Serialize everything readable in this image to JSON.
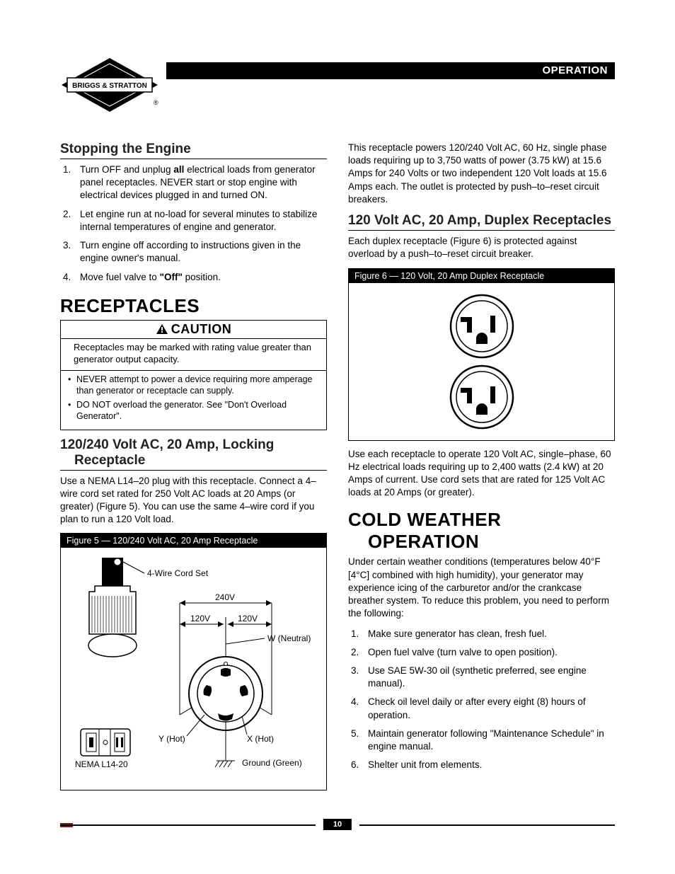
{
  "header": {
    "brand": "BRIGGS & STRATTON",
    "section": "OPERATION"
  },
  "left": {
    "stopping": {
      "title": "Stopping the Engine",
      "steps": [
        "Turn OFF and unplug <b>all</b> electrical loads from generator panel receptacles. NEVER start or stop engine with electrical devices plugged in and turned ON.",
        "Let engine run at no-load for several minutes to stabilize internal temperatures of engine and generator.",
        "Turn engine off according to instructions given in the engine owner's manual.",
        "Move fuel valve to <b>\"Off\"</b> position."
      ]
    },
    "receptacles_title": "RECEPTACLES",
    "caution": {
      "label": "CAUTION",
      "lead": "Receptacles may be marked with rating value greater than generator output capacity.",
      "bullets": [
        "NEVER attempt to power a device requiring more amperage than generator or receptacle can supply.",
        "DO NOT overload the generator. See \"Don't Overload Generator\"."
      ]
    },
    "locking": {
      "title": "120/240 Volt AC, 20 Amp, Locking Receptacle",
      "body": "Use a NEMA L14–20 plug with this receptacle. Connect a 4–wire cord set rated for 250 Volt AC loads at 20 Amps (or greater) (Figure 5). You can use the same 4–wire cord if you plan to run a 120 Volt load."
    },
    "figure5": {
      "title": "Figure 5 — 120/240 Volt AC, 20 Amp Receptacle",
      "labels": {
        "cordset": "4-Wire Cord Set",
        "v240": "240V",
        "v120a": "120V",
        "v120b": "120V",
        "w": "W (Neutral)",
        "y": "Y (Hot)",
        "x": "X (Hot)",
        "nema": "NEMA L14-20",
        "ground": "Ground (Green)"
      }
    }
  },
  "right": {
    "intro": "This receptacle powers 120/240 Volt AC, 60 Hz, single phase loads requiring up to 3,750 watts of power (3.75 kW) at 15.6 Amps for 240 Volts or two independent 120 Volt loads at 15.6 Amps each. The outlet is protected by push–to–reset circuit breakers.",
    "duplex": {
      "title": "120 Volt AC, 20 Amp, Duplex Receptacles",
      "lead": "Each duplex receptacle (Figure 6) is protected against overload by a push–to–reset circuit breaker."
    },
    "figure6": {
      "title": "Figure 6 — 120 Volt, 20 Amp Duplex Receptacle"
    },
    "duplex_body": "Use each receptacle to operate 120 Volt AC, single–phase, 60 Hz electrical loads requiring up to 2,400 watts (2.4 kW) at 20 Amps of current. Use cord sets that are rated for 125 Volt AC loads at 20 Amps (or greater).",
    "cold": {
      "title": "COLD WEATHER OPERATION",
      "lead": "Under certain weather conditions (temperatures below 40°F [4°C] combined with high humidity), your generator may experience icing of the carburetor and/or the crankcase breather system. To reduce this problem, you need to perform the following:",
      "steps": [
        "Make sure generator has clean, fresh fuel.",
        "Open fuel valve (turn valve to open position).",
        "Use SAE 5W-30 oil (synthetic preferred, see engine manual).",
        "Check oil level daily or after every eight (8) hours of operation.",
        "Maintain generator following \"Maintenance Schedule\" in engine manual.",
        "Shelter unit from elements."
      ]
    }
  },
  "page_number": "10"
}
